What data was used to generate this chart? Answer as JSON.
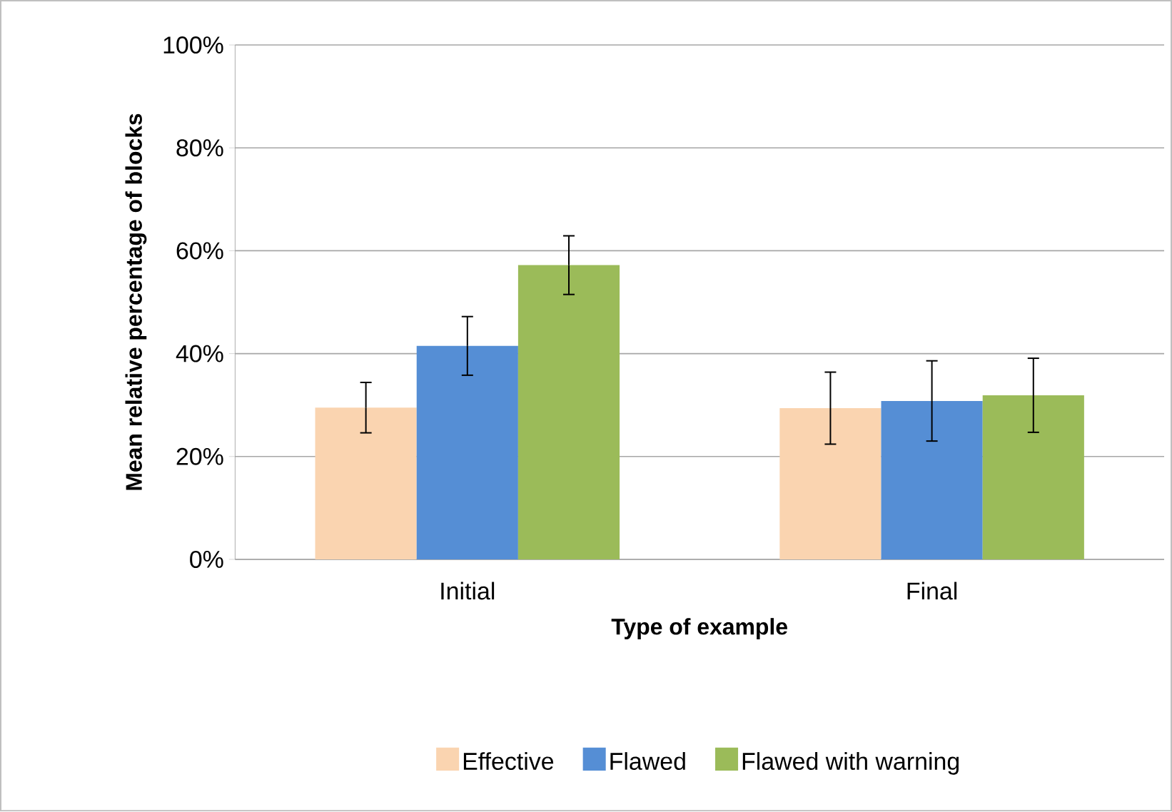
{
  "chart_data": {
    "type": "bar",
    "xlabel": "Type of example",
    "ylabel": "Mean relative percentage of blocks",
    "categories": [
      "Initial",
      "Final"
    ],
    "series": [
      {
        "name": "Effective",
        "color": "#fad4b0",
        "values": [
          29.5,
          29.4
        ],
        "errors": [
          4.9,
          7.0
        ]
      },
      {
        "name": "Flawed",
        "color": "#558ed5",
        "values": [
          41.5,
          30.8
        ],
        "errors": [
          5.7,
          7.8
        ]
      },
      {
        "name": "Flawed with warning",
        "color": "#9bbb59",
        "values": [
          57.2,
          31.9
        ],
        "errors": [
          5.7,
          7.2
        ]
      }
    ],
    "ylim": [
      0,
      100
    ],
    "yticks": [
      {
        "value": 0,
        "label": "0%"
      },
      {
        "value": 20,
        "label": "20%"
      },
      {
        "value": 40,
        "label": "40%"
      },
      {
        "value": 60,
        "label": "60%"
      },
      {
        "value": 80,
        "label": "80%"
      },
      {
        "value": 100,
        "label": "100%"
      }
    ],
    "grid": "y",
    "legend": "bottom"
  }
}
